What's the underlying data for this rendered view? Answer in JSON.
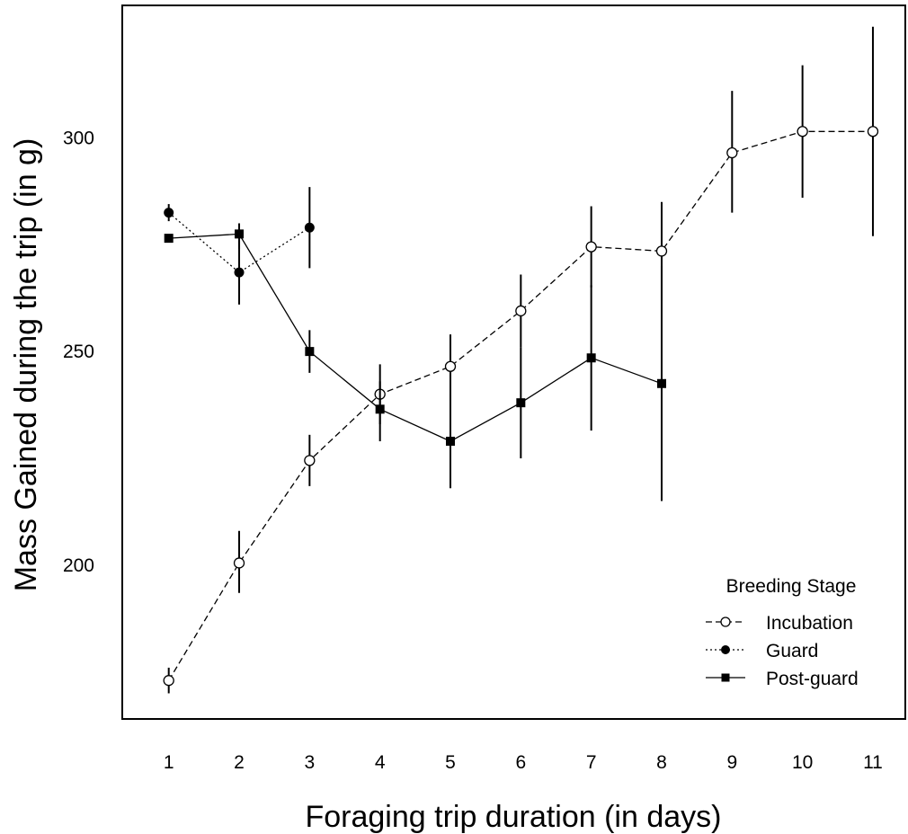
{
  "chart_data": {
    "type": "line",
    "title": "",
    "xlabel": "Foraging trip duration (in days)",
    "ylabel": "Mass Gained during the trip (in g)",
    "x_ticks": [
      1,
      2,
      3,
      4,
      5,
      6,
      7,
      8,
      9,
      10,
      11
    ],
    "y_ticks": [
      200,
      250,
      300
    ],
    "xlim": [
      0.34,
      11.46
    ],
    "ylim": [
      164,
      331
    ],
    "grid": false,
    "error_bars": true,
    "legend": {
      "title": "Breeding Stage",
      "position": "bottom-right"
    },
    "series": [
      {
        "name": "Incubation",
        "line_style": "dashed",
        "marker": "open-circle",
        "points": [
          {
            "x": 1,
            "y": 173,
            "lo": 170,
            "hi": 176
          },
          {
            "x": 2,
            "y": 200.5,
            "lo": 193.5,
            "hi": 208
          },
          {
            "x": 3,
            "y": 224.5,
            "lo": 218.5,
            "hi": 230.5
          },
          {
            "x": 4,
            "y": 240,
            "lo": 233,
            "hi": 247
          },
          {
            "x": 5,
            "y": 246.5,
            "lo": 238.5,
            "hi": 254
          },
          {
            "x": 6,
            "y": 259.5,
            "lo": 251,
            "hi": 268
          },
          {
            "x": 7,
            "y": 274.5,
            "lo": 265,
            "hi": 284
          },
          {
            "x": 8,
            "y": 273.5,
            "lo": 262,
            "hi": 285
          },
          {
            "x": 9,
            "y": 296.5,
            "lo": 282.5,
            "hi": 311
          },
          {
            "x": 10,
            "y": 301.5,
            "lo": 286,
            "hi": 317
          },
          {
            "x": 11,
            "y": 301.5,
            "lo": 277,
            "hi": 326
          }
        ]
      },
      {
        "name": "Guard",
        "line_style": "dotted",
        "marker": "filled-circle",
        "points": [
          {
            "x": 1,
            "y": 282.5,
            "lo": 280.5,
            "hi": 284.5
          },
          {
            "x": 2,
            "y": 268.5,
            "lo": 261,
            "hi": 276
          },
          {
            "x": 3,
            "y": 279,
            "lo": 269.5,
            "hi": 288.5
          }
        ]
      },
      {
        "name": "Post-guard",
        "line_style": "solid",
        "marker": "filled-square",
        "points": [
          {
            "x": 1,
            "y": 276.5,
            "lo": 276.5,
            "hi": 276.5
          },
          {
            "x": 2,
            "y": 277.5,
            "lo": 274,
            "hi": 280
          },
          {
            "x": 3,
            "y": 250,
            "lo": 245,
            "hi": 255
          },
          {
            "x": 4,
            "y": 236.5,
            "lo": 229,
            "hi": 243
          },
          {
            "x": 5,
            "y": 229,
            "lo": 218,
            "hi": 240
          },
          {
            "x": 6,
            "y": 238,
            "lo": 225,
            "hi": 251
          },
          {
            "x": 7,
            "y": 248.5,
            "lo": 231.5,
            "hi": 265.5
          },
          {
            "x": 8,
            "y": 242.5,
            "lo": 215,
            "hi": 270
          }
        ]
      }
    ]
  }
}
